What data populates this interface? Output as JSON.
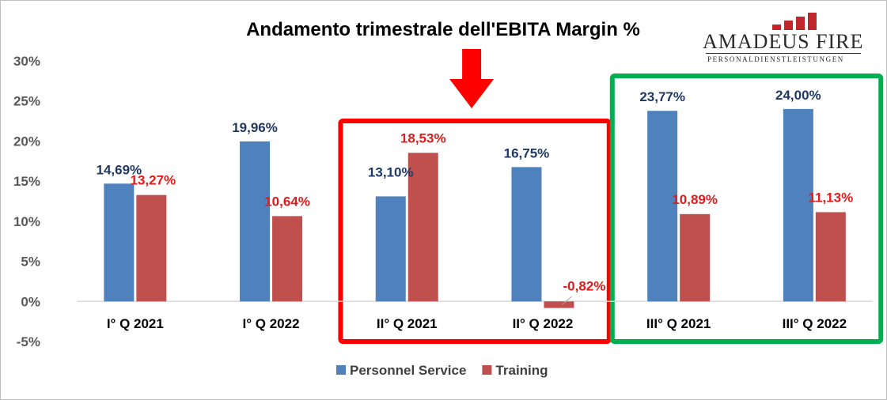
{
  "logo": {
    "name": "AMADEUS FIRE",
    "tagline": "PERSONALDIENSTLEISTUNGEN",
    "accent": "#c0272d"
  },
  "colors": {
    "personnel": "#4f81bd",
    "training": "#c0504d",
    "label_personnel": "#1f3864",
    "label_training": "#e01b1b",
    "highlight_red": "#ff0000",
    "highlight_green": "#00b050",
    "arrow": "#ff0000"
  },
  "chart_data": {
    "type": "bar",
    "title": "Andamento trimestrale dell'EBITA Margin %",
    "categories": [
      "I° Q 2021",
      "I° Q 2022",
      "II° Q 2021",
      "II° Q 2022",
      "III° Q 2021",
      "III° Q 2022"
    ],
    "series": [
      {
        "name": "Personnel Service",
        "values": [
          14.69,
          19.96,
          13.1,
          16.75,
          23.77,
          24.0
        ],
        "labels": [
          "14,69%",
          "19,96%",
          "13,10%",
          "16,75%",
          "23,77%",
          "24,00%"
        ]
      },
      {
        "name": "Training",
        "values": [
          13.27,
          10.64,
          18.53,
          -0.82,
          10.89,
          11.13
        ],
        "labels": [
          "13,27%",
          "10,64%",
          "18,53%",
          "-0,82%",
          "10,89%",
          "11,13%"
        ]
      }
    ],
    "yticks": [
      "-5%",
      "0%",
      "5%",
      "10%",
      "15%",
      "20%",
      "25%",
      "30%"
    ],
    "ylim": [
      -5,
      30
    ],
    "grid": false,
    "legend": "bottom",
    "highlights": [
      {
        "color": "red",
        "categories": [
          "II° Q 2021",
          "II° Q 2022"
        ]
      },
      {
        "color": "green",
        "categories": [
          "III° Q 2021",
          "III° Q 2022"
        ]
      }
    ],
    "arrow": {
      "direction": "down",
      "target": "II° Q 2021"
    }
  }
}
